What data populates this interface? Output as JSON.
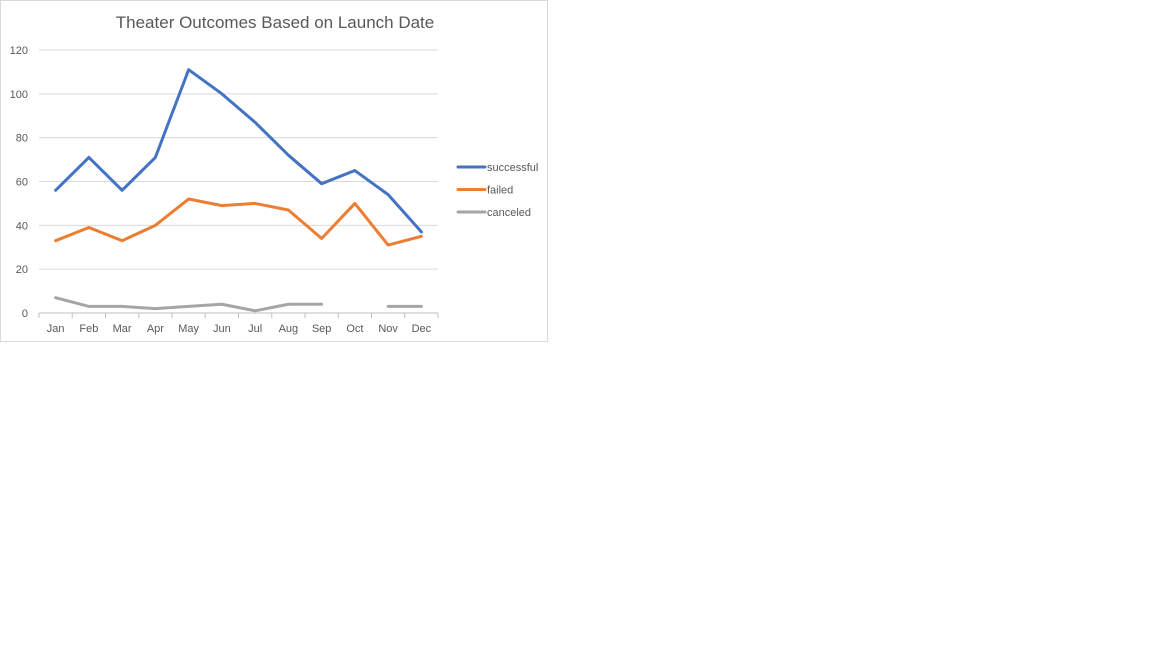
{
  "chart_data": {
    "type": "line",
    "title": "Theater Outcomes Based on Launch Date",
    "xlabel": "",
    "ylabel": "",
    "categories": [
      "Jan",
      "Feb",
      "Mar",
      "Apr",
      "May",
      "Jun",
      "Jul",
      "Aug",
      "Sep",
      "Oct",
      "Nov",
      "Dec"
    ],
    "ylim": [
      0,
      120
    ],
    "yticks": [
      0,
      20,
      40,
      60,
      80,
      100,
      120
    ],
    "grid": true,
    "legend_position": "right",
    "series": [
      {
        "name": "successful",
        "color": "#4472C4",
        "values": [
          56,
          71,
          56,
          71,
          111,
          100,
          87,
          72,
          59,
          65,
          54,
          37
        ]
      },
      {
        "name": "failed",
        "color": "#ED7D31",
        "values": [
          33,
          39,
          33,
          40,
          52,
          49,
          50,
          47,
          34,
          50,
          31,
          35
        ]
      },
      {
        "name": "canceled",
        "color": "#A5A5A5",
        "values": [
          7,
          3,
          3,
          2,
          3,
          4,
          1,
          4,
          4,
          null,
          3,
          3
        ]
      }
    ]
  }
}
